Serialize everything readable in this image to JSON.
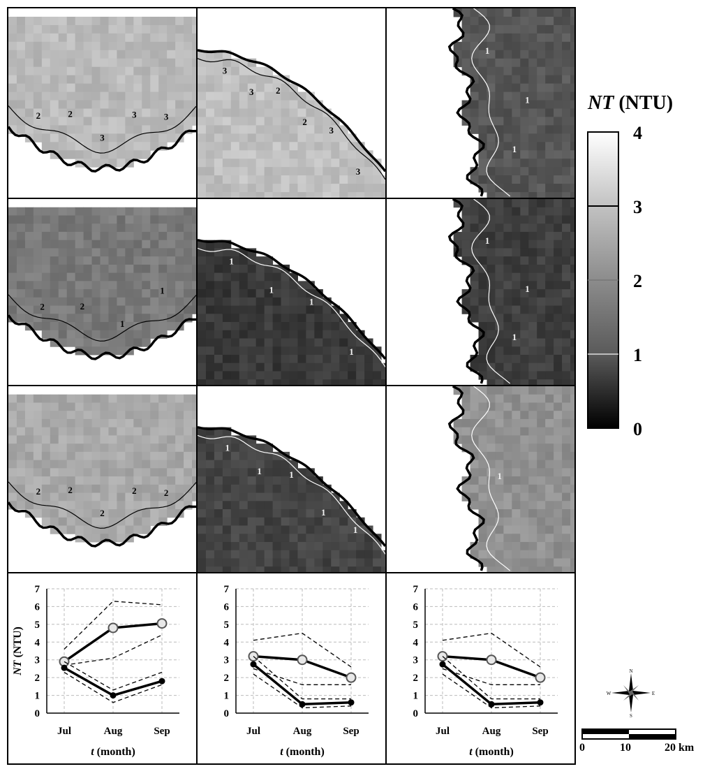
{
  "legend": {
    "title_var": "NT",
    "title_unit": " (NTU)",
    "ticks": [
      "4",
      "3",
      "2",
      "1",
      "0"
    ],
    "colors": {
      "high": "#ffffff",
      "low": "#000000"
    }
  },
  "map_tiles": [
    {
      "row": 0,
      "col": 0,
      "mean_level": 3.0,
      "contour_labels": [
        "2",
        "2",
        "3",
        "3",
        "3"
      ]
    },
    {
      "row": 0,
      "col": 1,
      "mean_level": 3.1,
      "contour_labels": [
        "3",
        "3",
        "2",
        "2",
        "3",
        "3"
      ]
    },
    {
      "row": 0,
      "col": 2,
      "mean_level": 1.3,
      "contour_labels": [
        "1",
        "1",
        "1"
      ]
    },
    {
      "row": 1,
      "col": 0,
      "mean_level": 1.9,
      "contour_labels": [
        "2",
        "2",
        "1",
        "1"
      ]
    },
    {
      "row": 1,
      "col": 1,
      "mean_level": 0.8,
      "contour_labels": [
        "1",
        "1",
        "1",
        "1"
      ]
    },
    {
      "row": 1,
      "col": 2,
      "mean_level": 0.9,
      "contour_labels": [
        "1",
        "1",
        "1"
      ]
    },
    {
      "row": 2,
      "col": 0,
      "mean_level": 2.7,
      "contour_labels": [
        "2",
        "2",
        "2",
        "2",
        "2"
      ]
    },
    {
      "row": 2,
      "col": 1,
      "mean_level": 1.0,
      "contour_labels": [
        "1",
        "1",
        "1",
        "1",
        "1"
      ]
    },
    {
      "row": 2,
      "col": 2,
      "mean_level": 2.3,
      "contour_labels": [
        "1"
      ]
    }
  ],
  "chart_data": [
    {
      "type": "line",
      "categories": [
        "Jul",
        "Aug",
        "Sep"
      ],
      "xlabel_var": "t",
      "xlabel_unit": " (month)",
      "ylabel_var": "NT",
      "ylabel_unit": " (NTU)",
      "ylim": [
        0,
        7
      ],
      "yticks": [
        "0",
        "1",
        "2",
        "3",
        "4",
        "5",
        "6",
        "7"
      ],
      "grid": true,
      "series": [
        {
          "style": "open-circle",
          "values": [
            2.9,
            4.8,
            5.05
          ],
          "upper": [
            3.6,
            6.3,
            6.1
          ],
          "lower": [
            2.7,
            3.1,
            4.4
          ]
        },
        {
          "style": "filled-circle",
          "values": [
            2.55,
            1.0,
            1.8
          ],
          "upper": [
            2.9,
            1.3,
            2.3
          ],
          "lower": [
            2.3,
            0.6,
            1.6
          ]
        }
      ]
    },
    {
      "type": "line",
      "categories": [
        "Jul",
        "Aug",
        "Sep"
      ],
      "xlabel_var": "t",
      "xlabel_unit": " (month)",
      "ylim": [
        0,
        7
      ],
      "yticks": [
        "0",
        "1",
        "2",
        "3",
        "4",
        "5",
        "6",
        "7"
      ],
      "grid": true,
      "series": [
        {
          "style": "open-circle",
          "values": [
            3.2,
            3.0,
            2.0
          ],
          "upper": [
            4.1,
            4.5,
            2.6
          ],
          "lower": [
            2.5,
            1.6,
            1.6
          ]
        },
        {
          "style": "filled-circle",
          "values": [
            2.75,
            0.5,
            0.6
          ],
          "upper": [
            3.2,
            0.8,
            0.8
          ],
          "lower": [
            2.2,
            0.3,
            0.4
          ]
        }
      ]
    },
    {
      "type": "line",
      "categories": [
        "Jul",
        "Aug",
        "Sep"
      ],
      "xlabel_var": "t",
      "xlabel_unit": " (month)",
      "ylim": [
        0,
        7
      ],
      "yticks": [
        "0",
        "1",
        "2",
        "3",
        "4",
        "5",
        "6",
        "7"
      ],
      "grid": true,
      "series": [
        {
          "style": "open-circle",
          "values": [
            3.2,
            3.0,
            2.0
          ],
          "upper": [
            4.1,
            4.5,
            2.6
          ],
          "lower": [
            2.5,
            1.6,
            1.6
          ]
        },
        {
          "style": "filled-circle",
          "values": [
            2.75,
            0.5,
            0.6
          ],
          "upper": [
            3.2,
            0.8,
            0.8
          ],
          "lower": [
            2.2,
            0.3,
            0.4
          ]
        }
      ]
    }
  ],
  "compass": {
    "n": "N",
    "s": "S",
    "e": "E",
    "w": "W"
  },
  "scale_bar": {
    "labels": [
      "0",
      "10",
      "20 km"
    ]
  }
}
